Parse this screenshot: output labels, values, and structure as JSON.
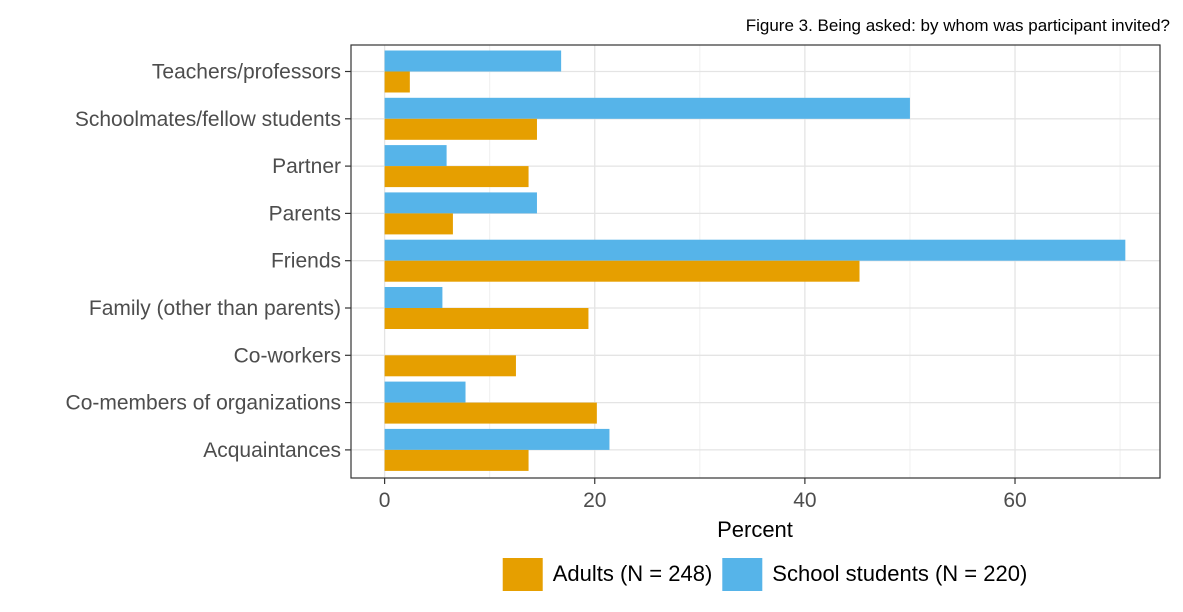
{
  "caption": "Figure 3. Being asked: by whom was participant invited?",
  "chart_data": {
    "type": "bar",
    "orientation": "horizontal",
    "categories": [
      "Teachers/professors",
      "Schoolmates/fellow students",
      "Partner",
      "Parents",
      "Friends",
      "Family (other than parents)",
      "Co-workers",
      "Co-members of organizations",
      "Acquaintances"
    ],
    "series": [
      {
        "name": "School students (N = 220)",
        "color": "#56B4E9",
        "values": [
          16.8,
          50.0,
          5.9,
          14.5,
          70.5,
          5.5,
          0,
          7.7,
          21.4
        ]
      },
      {
        "name": "Adults (N = 248)",
        "color": "#E69F00",
        "values": [
          2.4,
          14.5,
          13.7,
          6.5,
          45.2,
          19.4,
          12.5,
          20.2,
          13.7
        ]
      }
    ],
    "xlabel": "Percent",
    "ylabel": "",
    "xlim": [
      -3.2,
      73.8
    ],
    "xticks": [
      0,
      20,
      40,
      60
    ],
    "xtick_labels": [
      "0",
      "20",
      "40",
      "60"
    ],
    "grid": true,
    "legend": {
      "position": "bottom",
      "items": [
        {
          "label": "Adults (N = 248)",
          "color": "#E69F00"
        },
        {
          "label": "School students (N = 220)",
          "color": "#56B4E9"
        }
      ]
    }
  }
}
